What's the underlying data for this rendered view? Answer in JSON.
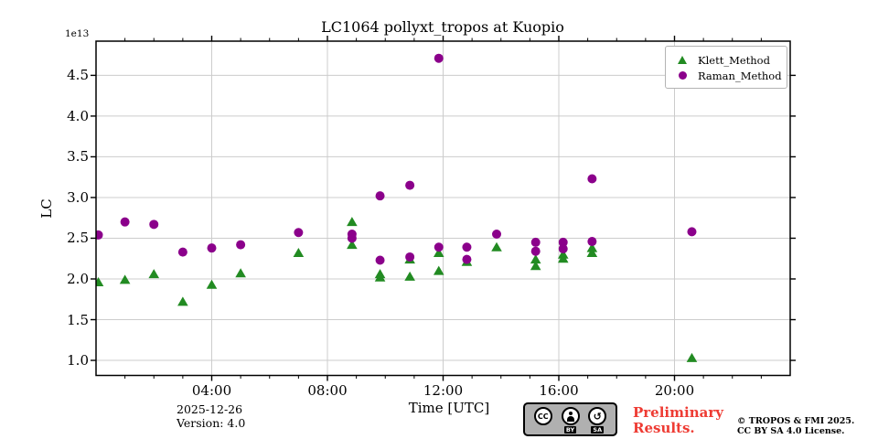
{
  "figure": {
    "title": "LC1064 pollyxt_tropos at Kuopio",
    "background": "#ffffff"
  },
  "chart_data": {
    "type": "scatter",
    "title": "LC1064 pollyxt_tropos at Kuopio",
    "xlabel": "Time [UTC]",
    "ylabel": "LC",
    "y_offset_label": "1e13",
    "xlim_hours": [
      0,
      24
    ],
    "ylim": [
      0.815,
      4.92
    ],
    "grid": true,
    "grid_color": "#cccccc",
    "legend_position": "upper right",
    "x_major_ticks": [
      {
        "value": 4,
        "label": "04:00"
      },
      {
        "value": 8,
        "label": "08:00"
      },
      {
        "value": 12,
        "label": "12:00"
      },
      {
        "value": 16,
        "label": "16:00"
      },
      {
        "value": 20,
        "label": "20:00"
      }
    ],
    "x_minor_tick_every_hours": 1,
    "y_ticks": [
      {
        "value": 1.0,
        "label": "1.0"
      },
      {
        "value": 1.5,
        "label": "1.5"
      },
      {
        "value": 2.0,
        "label": "2.0"
      },
      {
        "value": 2.5,
        "label": "2.5"
      },
      {
        "value": 3.0,
        "label": "3.0"
      },
      {
        "value": 3.5,
        "label": "3.5"
      },
      {
        "value": 4.0,
        "label": "4.0"
      },
      {
        "value": 4.5,
        "label": "4.5"
      }
    ],
    "series": [
      {
        "name": "Klett_Method",
        "marker": "triangle",
        "color": "#228B22",
        "points": [
          [
            0.08,
            1.96
          ],
          [
            1.0,
            1.99
          ],
          [
            2.0,
            2.06
          ],
          [
            3.0,
            1.72
          ],
          [
            4.0,
            1.93
          ],
          [
            5.0,
            2.07
          ],
          [
            7.0,
            2.32
          ],
          [
            8.85,
            2.7
          ],
          [
            8.85,
            2.42
          ],
          [
            9.82,
            2.06
          ],
          [
            9.82,
            2.02
          ],
          [
            10.85,
            2.24
          ],
          [
            10.85,
            2.03
          ],
          [
            11.85,
            2.32
          ],
          [
            11.85,
            2.1
          ],
          [
            12.82,
            2.21
          ],
          [
            13.85,
            2.39
          ],
          [
            15.2,
            2.24
          ],
          [
            15.2,
            2.16
          ],
          [
            16.15,
            2.3
          ],
          [
            16.15,
            2.25
          ],
          [
            17.15,
            2.38
          ],
          [
            17.15,
            2.32
          ],
          [
            20.6,
            1.03
          ]
        ]
      },
      {
        "name": "Raman_Method",
        "marker": "circle",
        "color": "#8B008B",
        "points": [
          [
            0.08,
            2.54
          ],
          [
            1.0,
            2.7
          ],
          [
            2.0,
            2.67
          ],
          [
            3.0,
            2.33
          ],
          [
            4.0,
            2.38
          ],
          [
            5.0,
            2.42
          ],
          [
            7.0,
            2.57
          ],
          [
            8.85,
            2.55
          ],
          [
            8.85,
            2.5
          ],
          [
            9.82,
            3.02
          ],
          [
            9.82,
            2.23
          ],
          [
            10.85,
            3.15
          ],
          [
            10.85,
            2.27
          ],
          [
            11.85,
            4.71
          ],
          [
            11.85,
            2.39
          ],
          [
            12.82,
            2.39
          ],
          [
            12.82,
            2.24
          ],
          [
            13.85,
            2.55
          ],
          [
            15.2,
            2.45
          ],
          [
            15.2,
            2.34
          ],
          [
            16.15,
            2.45
          ],
          [
            16.15,
            2.37
          ],
          [
            17.15,
            3.23
          ],
          [
            17.15,
            2.46
          ],
          [
            20.6,
            2.58
          ]
        ]
      }
    ]
  },
  "annotations": {
    "date": "2025-12-26",
    "version": "Version: 4.0",
    "preliminary_line1": "Preliminary",
    "preliminary_line2": "Results.",
    "preliminary_color": "#ee3b33",
    "copyright_line1": "© TROPOS & FMI 2025.",
    "copyright_line2": "CC BY SA 4.0 License.",
    "cc_badge": {
      "cc": "CC",
      "by": "BY",
      "sa": "SA",
      "sa_symbol": "↺"
    }
  }
}
